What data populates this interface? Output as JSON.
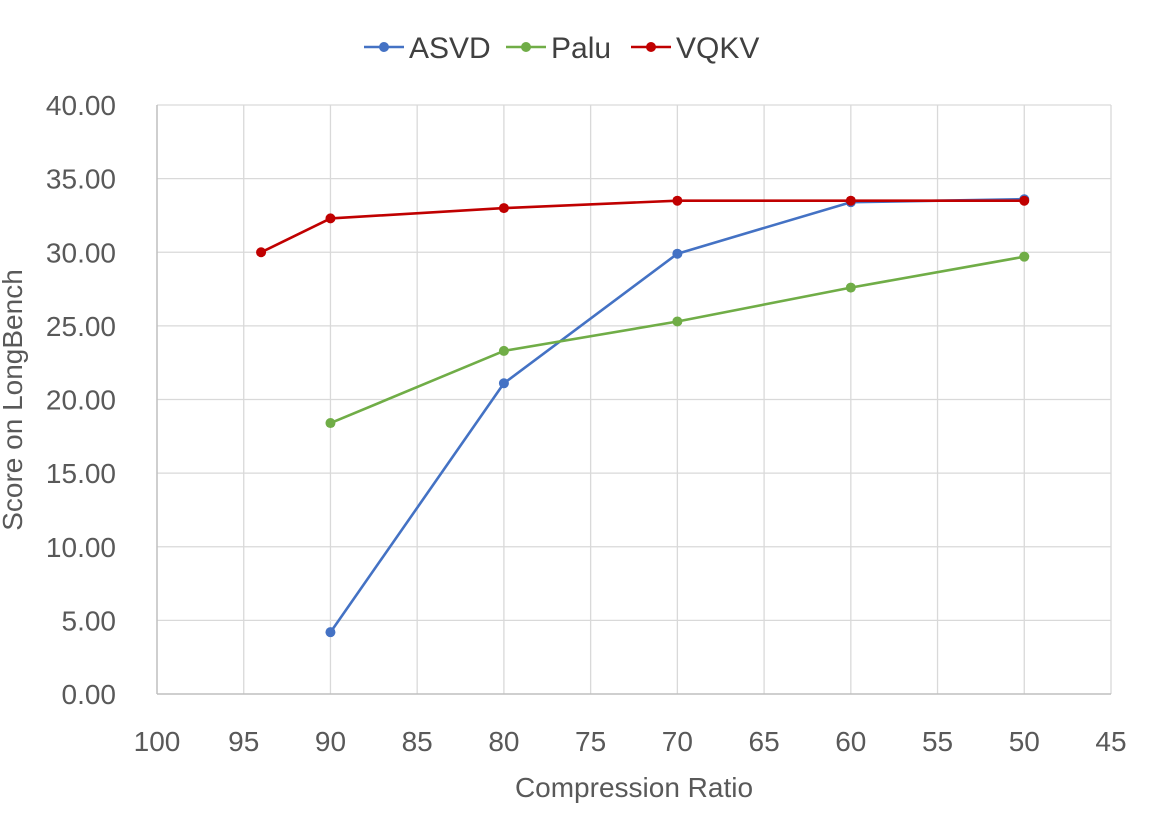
{
  "chart_data": {
    "type": "line",
    "title": "",
    "xlabel": "Compression Ratio",
    "ylabel": "Score on LongBench",
    "xlim": [
      100,
      45
    ],
    "x_reversed": true,
    "x_ticks": [
      100,
      95,
      90,
      85,
      80,
      75,
      70,
      65,
      60,
      55,
      50,
      45
    ],
    "ylim": [
      0,
      40
    ],
    "y_ticks": [
      "0.00",
      "5.00",
      "10.00",
      "15.00",
      "20.00",
      "25.00",
      "30.00",
      "35.00",
      "40.00"
    ],
    "grid": true,
    "legend_position": "top",
    "series": [
      {
        "name": "ASVD",
        "color": "#4472C4",
        "points": [
          [
            90,
            4.2
          ],
          [
            80,
            21.1
          ],
          [
            70,
            29.9
          ],
          [
            60,
            33.4
          ],
          [
            50,
            33.6
          ]
        ]
      },
      {
        "name": "Palu",
        "color": "#70AD47",
        "points": [
          [
            90,
            18.4
          ],
          [
            80,
            23.3
          ],
          [
            70,
            25.3
          ],
          [
            60,
            27.6
          ],
          [
            50,
            29.7
          ]
        ]
      },
      {
        "name": "VQKV",
        "color": "#C00000",
        "points": [
          [
            94,
            30.0
          ],
          [
            90,
            32.3
          ],
          [
            80,
            33.0
          ],
          [
            70,
            33.5
          ],
          [
            60,
            33.5
          ],
          [
            50,
            33.5
          ]
        ]
      }
    ]
  }
}
